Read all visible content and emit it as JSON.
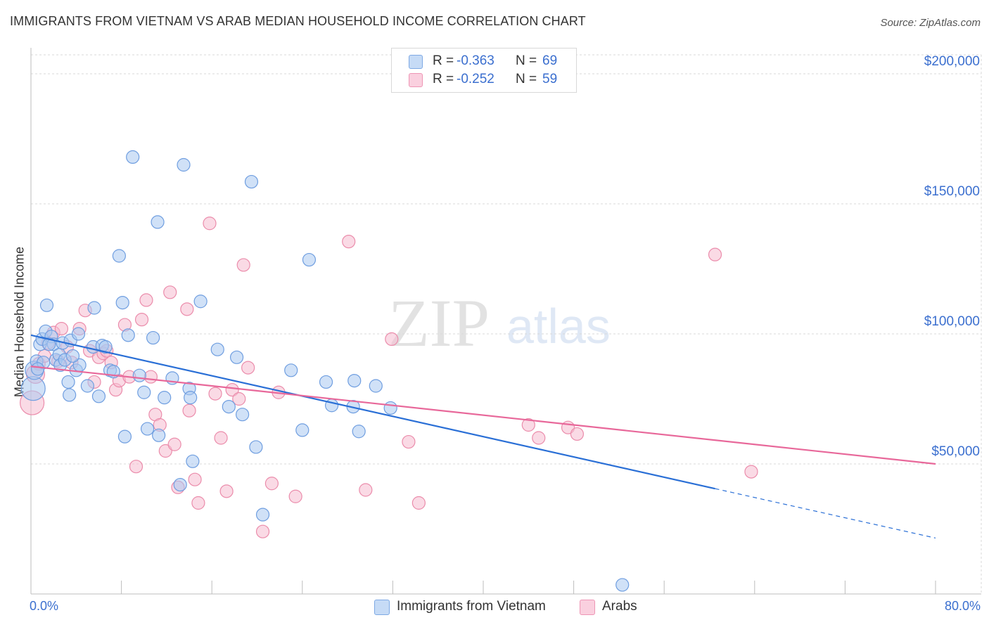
{
  "title": "IMMIGRANTS FROM VIETNAM VS ARAB MEDIAN HOUSEHOLD INCOME CORRELATION CHART",
  "source": "Source: ZipAtlas.com",
  "watermark": {
    "part1": "ZIP",
    "part2": "atlas"
  },
  "colors": {
    "blue_fill": "#a9c8f1",
    "blue_stroke": "#6f9ee0",
    "blue_line": "#2a6fd6",
    "pink_fill": "#f6bcd0",
    "pink_stroke": "#eb8cab",
    "pink_line": "#e8689a",
    "grid": "#d9d9d9",
    "axis_text": "#3b6fcf"
  },
  "legend": {
    "rows": [
      {
        "r_label": "R = ",
        "r_value": "-0.363",
        "n_label": "N = ",
        "n_value": "69",
        "color": "#a9c8f1"
      },
      {
        "r_label": "R = ",
        "r_value": "-0.252",
        "n_label": "N = ",
        "n_value": "59",
        "color": "#f6bcd0"
      }
    ]
  },
  "chart_data": {
    "type": "scatter",
    "title": "IMMIGRANTS FROM VIETNAM VS ARAB MEDIAN HOUSEHOLD INCOME CORRELATION CHART",
    "xlabel": "",
    "ylabel": "Median Household Income",
    "xlim": [
      0,
      80
    ],
    "ylim": [
      0,
      210000
    ],
    "x_tick_labels": {
      "min": "0.0%",
      "max": "80.0%"
    },
    "y_ticks": [
      {
        "value": 50000,
        "label": "$50,000"
      },
      {
        "value": 100000,
        "label": "$100,000"
      },
      {
        "value": 150000,
        "label": "$150,000"
      },
      {
        "value": 200000,
        "label": "$200,000"
      }
    ],
    "series": [
      {
        "name": "Immigrants from Vietnam",
        "r": -0.363,
        "n": 69,
        "trend": {
          "x0": 0,
          "y0": 99500,
          "x1": 60.5,
          "y1": 40500,
          "dashed_to_x": 80,
          "dashed_to_y": 21500
        },
        "points": [
          [
            0.2,
            79000,
            3
          ],
          [
            0.3,
            86000,
            2
          ],
          [
            0.5,
            89500,
            1
          ],
          [
            0.8,
            96000,
            1
          ],
          [
            1.0,
            98000,
            1
          ],
          [
            1.1,
            89000,
            1
          ],
          [
            1.3,
            101000,
            1
          ],
          [
            1.4,
            111000,
            1
          ],
          [
            1.8,
            99000,
            1
          ],
          [
            2.0,
            96000,
            1
          ],
          [
            2.2,
            90000,
            1
          ],
          [
            2.5,
            92000,
            1
          ],
          [
            2.6,
            88000,
            1
          ],
          [
            2.8,
            96500,
            1
          ],
          [
            3.0,
            90000,
            1
          ],
          [
            3.3,
            81500,
            1
          ],
          [
            3.4,
            76500,
            1
          ],
          [
            3.5,
            97500,
            1
          ],
          [
            4.0,
            86000,
            1
          ],
          [
            4.2,
            100000,
            1
          ],
          [
            4.3,
            88000,
            1
          ],
          [
            5.0,
            80000,
            1
          ],
          [
            5.6,
            110000,
            1
          ],
          [
            5.5,
            95000,
            1
          ],
          [
            6.0,
            76000,
            1
          ],
          [
            6.3,
            95500,
            1
          ],
          [
            6.6,
            95000,
            1
          ],
          [
            7.0,
            86000,
            1
          ],
          [
            7.8,
            130000,
            1
          ],
          [
            8.1,
            112000,
            1
          ],
          [
            8.3,
            60500,
            1
          ],
          [
            8.6,
            99500,
            1
          ],
          [
            9.0,
            168000,
            1
          ],
          [
            9.6,
            84000,
            1
          ],
          [
            10.0,
            77500,
            1
          ],
          [
            10.3,
            63500,
            1
          ],
          [
            10.8,
            98500,
            1
          ],
          [
            11.2,
            143000,
            1
          ],
          [
            11.3,
            61000,
            1
          ],
          [
            11.8,
            75500,
            1
          ],
          [
            12.5,
            83000,
            1
          ],
          [
            13.2,
            42000,
            1
          ],
          [
            13.5,
            165000,
            1
          ],
          [
            14.0,
            79000,
            1
          ],
          [
            14.1,
            75500,
            1
          ],
          [
            14.3,
            51000,
            1
          ],
          [
            15.0,
            112500,
            1
          ],
          [
            16.5,
            94000,
            1
          ],
          [
            17.5,
            72000,
            1
          ],
          [
            18.2,
            91000,
            1
          ],
          [
            18.7,
            69000,
            1
          ],
          [
            19.5,
            158500,
            1
          ],
          [
            19.9,
            56500,
            1
          ],
          [
            20.5,
            30500,
            1
          ],
          [
            23.0,
            86000,
            1
          ],
          [
            24.0,
            63000,
            1
          ],
          [
            24.6,
            128500,
            1
          ],
          [
            26.1,
            81500,
            1
          ],
          [
            26.6,
            72500,
            1
          ],
          [
            28.5,
            72000,
            1
          ],
          [
            28.6,
            82000,
            1
          ],
          [
            29.0,
            62500,
            1
          ],
          [
            30.5,
            80000,
            1
          ],
          [
            31.8,
            71500,
            1
          ],
          [
            52.3,
            3500,
            1
          ],
          [
            0.6,
            86500,
            1
          ],
          [
            1.6,
            96000,
            1
          ],
          [
            3.7,
            91500,
            1
          ],
          [
            7.3,
            85500,
            1
          ]
        ]
      },
      {
        "name": "Arabs",
        "r": -0.252,
        "n": 59,
        "trend": {
          "x0": 0,
          "y0": 87500,
          "x1": 80,
          "y1": 50000
        },
        "points": [
          [
            0.1,
            73500,
            3
          ],
          [
            0.4,
            84500,
            2
          ],
          [
            0.7,
            88500,
            1
          ],
          [
            1.2,
            91500,
            1
          ],
          [
            1.5,
            96500,
            1
          ],
          [
            2.0,
            100500,
            1
          ],
          [
            2.7,
            102000,
            1
          ],
          [
            3.2,
            95000,
            1
          ],
          [
            3.6,
            89000,
            1
          ],
          [
            4.3,
            102000,
            1
          ],
          [
            4.8,
            109000,
            1
          ],
          [
            5.2,
            93500,
            1
          ],
          [
            5.6,
            81500,
            1
          ],
          [
            6.0,
            91000,
            1
          ],
          [
            6.4,
            92500,
            1
          ],
          [
            6.7,
            93500,
            1
          ],
          [
            7.1,
            89000,
            1
          ],
          [
            7.5,
            78500,
            1
          ],
          [
            7.8,
            82000,
            1
          ],
          [
            8.3,
            103500,
            1
          ],
          [
            8.7,
            83500,
            1
          ],
          [
            9.3,
            49000,
            1
          ],
          [
            9.8,
            105500,
            1
          ],
          [
            10.2,
            113000,
            1
          ],
          [
            10.6,
            83500,
            1
          ],
          [
            11.0,
            69000,
            1
          ],
          [
            11.4,
            65000,
            1
          ],
          [
            11.9,
            55000,
            1
          ],
          [
            12.3,
            116000,
            1
          ],
          [
            12.7,
            57500,
            1
          ],
          [
            13.0,
            41000,
            1
          ],
          [
            13.8,
            109500,
            1
          ],
          [
            14.0,
            70500,
            1
          ],
          [
            14.5,
            44000,
            1
          ],
          [
            14.8,
            35000,
            1
          ],
          [
            15.8,
            142500,
            1
          ],
          [
            16.3,
            77000,
            1
          ],
          [
            16.8,
            60000,
            1
          ],
          [
            17.3,
            39500,
            1
          ],
          [
            17.8,
            78500,
            1
          ],
          [
            18.4,
            75000,
            1
          ],
          [
            18.8,
            126500,
            1
          ],
          [
            19.2,
            87000,
            1
          ],
          [
            20.5,
            24000,
            1
          ],
          [
            21.3,
            42500,
            1
          ],
          [
            21.9,
            77500,
            1
          ],
          [
            23.4,
            37500,
            1
          ],
          [
            28.1,
            135500,
            1
          ],
          [
            29.6,
            40000,
            1
          ],
          [
            31.9,
            98000,
            1
          ],
          [
            33.4,
            58500,
            1
          ],
          [
            34.3,
            35000,
            1
          ],
          [
            44.0,
            65000,
            1
          ],
          [
            44.9,
            60000,
            1
          ],
          [
            47.5,
            64000,
            1
          ],
          [
            48.3,
            61500,
            1
          ],
          [
            60.5,
            130500,
            1
          ],
          [
            63.7,
            47000,
            1
          ],
          [
            2.4,
            89500,
            1
          ]
        ]
      }
    ]
  }
}
